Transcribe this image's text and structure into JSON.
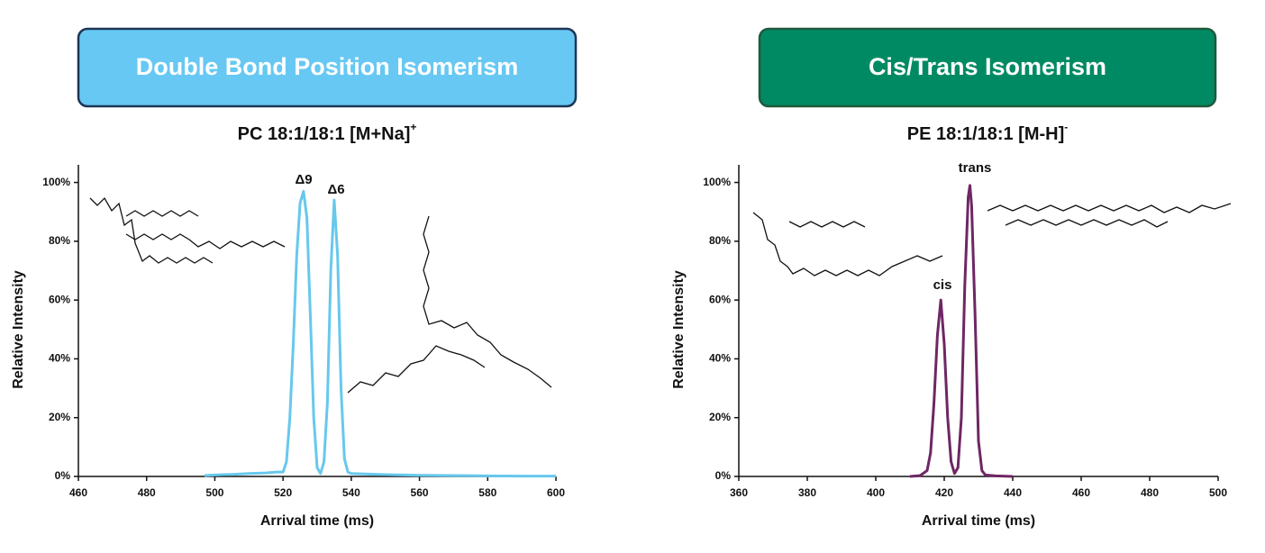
{
  "chart_data": [
    {
      "type": "line",
      "header": "Double Bond Position Isomerism",
      "header_color": "#67c8f3",
      "header_border": "#1d3557",
      "title": "PC 18:1/18:1 [M+Na]",
      "title_charge": "+",
      "x_label": "Arrival time (ms)",
      "y_label": "Relative Intensity",
      "annotations": [
        "Δ9",
        "Δ6"
      ],
      "color": "#67c8ec",
      "x": [
        497,
        500,
        505,
        510,
        515,
        518,
        520,
        521,
        522,
        523,
        524,
        525,
        526,
        527,
        528,
        529,
        530,
        531,
        532,
        533,
        534,
        535,
        536,
        537,
        538,
        539,
        540,
        545,
        550,
        560,
        570,
        580,
        590,
        600
      ],
      "values": [
        0.3,
        0.5,
        0.7,
        1,
        1.2,
        1.5,
        1.5,
        5,
        20,
        45,
        75,
        93,
        97,
        88,
        55,
        20,
        3,
        1,
        5,
        25,
        70,
        94,
        75,
        30,
        6,
        1.5,
        1,
        0.8,
        0.6,
        0.4,
        0.3,
        0.2,
        0.1,
        0.1
      ],
      "xlim": [
        460,
        600
      ],
      "xticks": [
        460,
        480,
        500,
        520,
        540,
        560,
        580,
        600
      ],
      "ylim": [
        0,
        106
      ],
      "yticks": [
        {
          "value": 0,
          "label": "0%"
        },
        {
          "value": 20,
          "label": "20%"
        },
        {
          "value": 40,
          "label": "40%"
        },
        {
          "value": 60,
          "label": "60%"
        },
        {
          "value": 80,
          "label": "80%"
        },
        {
          "value": 100,
          "label": "100%"
        }
      ]
    },
    {
      "type": "line",
      "header": "Cis/Trans Isomerism",
      "header_color": "#008a63",
      "header_border": "#1f5a3c",
      "title": "PE 18:1/18:1 [M-H]",
      "title_charge": "-",
      "x_label": "Arrival time (ms)",
      "y_label": "Relative Intensity",
      "annotations": [
        "cis",
        "trans"
      ],
      "color": "#6e2764",
      "x": [
        410,
        413,
        415,
        416,
        417,
        418,
        419,
        420,
        421,
        422,
        423,
        424,
        425,
        426,
        427,
        427.5,
        428,
        429,
        430,
        431,
        432,
        435,
        440
      ],
      "values": [
        0,
        0.3,
        2,
        8,
        25,
        48,
        60,
        45,
        20,
        5,
        1,
        3,
        20,
        65,
        95,
        99,
        92,
        55,
        12,
        2,
        0.5,
        0.2,
        0
      ],
      "xlim": [
        360,
        500
      ],
      "xticks": [
        360,
        380,
        400,
        420,
        440,
        460,
        480,
        500
      ],
      "ylim": [
        0,
        106
      ],
      "yticks": [
        {
          "value": 0,
          "label": "0%"
        },
        {
          "value": 20,
          "label": "20%"
        },
        {
          "value": 40,
          "label": "40%"
        },
        {
          "value": 60,
          "label": "60%"
        },
        {
          "value": 80,
          "label": "80%"
        },
        {
          "value": 100,
          "label": "100%"
        }
      ]
    }
  ]
}
